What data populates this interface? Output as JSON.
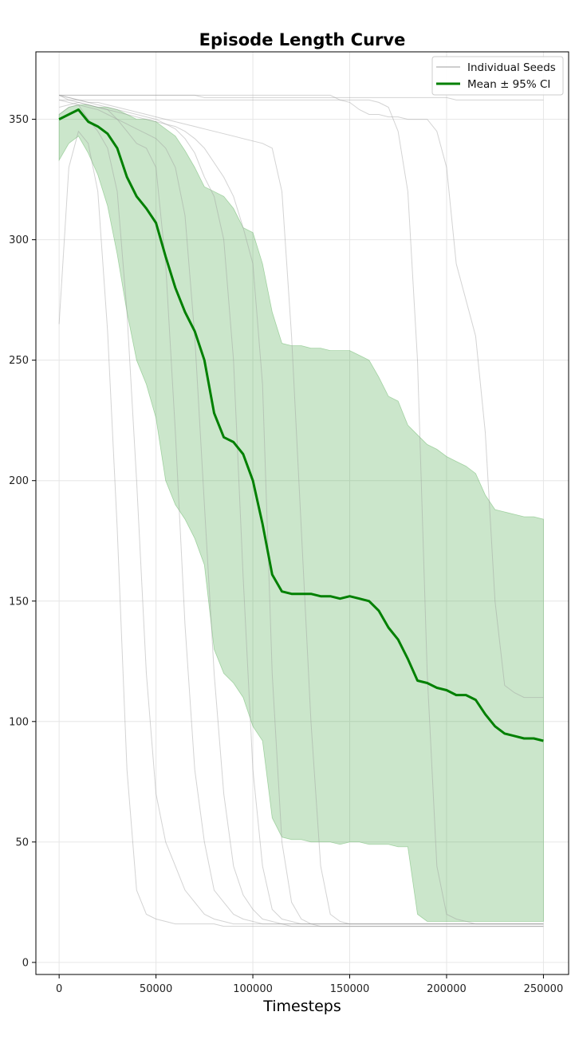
{
  "chart_data": {
    "type": "line",
    "title": "Episode Length Curve",
    "xlabel": "Timesteps",
    "ylabel": "",
    "xlim": [
      -12000,
      263000
    ],
    "ylim": [
      -5,
      378
    ],
    "xticks": [
      0,
      50000,
      100000,
      150000,
      200000,
      250000
    ],
    "yticks": [
      0,
      50,
      100,
      150,
      200,
      250,
      300,
      350
    ],
    "grid": true,
    "legend_position": "top-right",
    "legend": [
      {
        "label": "Individual Seeds",
        "color": "#b0b0b0"
      },
      {
        "label": "Mean ± 95% CI",
        "color": "#008000"
      }
    ],
    "mean_color": "#008000",
    "band_color": "#2e9b2e",
    "seed_color": "#9e9e9e",
    "x": [
      0,
      5000,
      10000,
      15000,
      20000,
      25000,
      30000,
      35000,
      40000,
      45000,
      50000,
      55000,
      60000,
      65000,
      70000,
      75000,
      80000,
      85000,
      90000,
      95000,
      100000,
      105000,
      110000,
      115000,
      120000,
      125000,
      130000,
      135000,
      140000,
      145000,
      150000,
      155000,
      160000,
      165000,
      170000,
      175000,
      180000,
      185000,
      190000,
      195000,
      200000,
      205000,
      210000,
      215000,
      220000,
      225000,
      230000,
      235000,
      240000,
      245000,
      250000
    ],
    "series": [
      {
        "name": "Mean ± 95% CI",
        "role": "mean",
        "values": [
          350,
          352,
          354,
          349,
          347,
          344,
          338,
          326,
          318,
          313,
          307,
          293,
          280,
          270,
          262,
          250,
          228,
          218,
          216,
          211,
          200,
          182,
          161,
          154,
          153,
          153,
          153,
          152,
          152,
          151,
          152,
          151,
          150,
          146,
          139,
          134,
          126,
          117,
          116,
          114,
          113,
          111,
          111,
          109,
          103,
          98,
          95,
          94,
          93,
          93,
          92
        ],
        "ci_upper": [
          352,
          355,
          356,
          356,
          355,
          355,
          354,
          352,
          350,
          350,
          349,
          346,
          343,
          337,
          330,
          322,
          320,
          318,
          313,
          305,
          303,
          290,
          270,
          257,
          256,
          256,
          255,
          255,
          254,
          254,
          254,
          252,
          250,
          243,
          235,
          233,
          223,
          219,
          215,
          213,
          210,
          208,
          206,
          203,
          194,
          188,
          187,
          186,
          185,
          185,
          184
        ],
        "ci_lower": [
          333,
          340,
          343,
          336,
          327,
          314,
          294,
          270,
          250,
          240,
          226,
          200,
          190,
          184,
          176,
          165,
          130,
          120,
          116,
          110,
          98,
          92,
          60,
          52,
          51,
          51,
          50,
          50,
          50,
          49,
          50,
          50,
          49,
          49,
          49,
          48,
          48,
          20,
          17,
          17,
          17,
          17,
          17,
          17,
          17,
          17,
          17,
          17,
          17,
          17,
          17
        ]
      },
      {
        "name": "",
        "role": "seed",
        "values": [
          265,
          330,
          345,
          340,
          320,
          262,
          180,
          80,
          30,
          20,
          18,
          17,
          16,
          16,
          16,
          16,
          16,
          15,
          15,
          15,
          15,
          15,
          15,
          15,
          15,
          15,
          15,
          15,
          15,
          15,
          15,
          15,
          15,
          15,
          15,
          15,
          15,
          15,
          15,
          15,
          15,
          15,
          15,
          15,
          15,
          15,
          15,
          15,
          15,
          15,
          15
        ]
      },
      {
        "name": "",
        "role": "seed",
        "values": [
          352,
          355,
          356,
          350,
          345,
          338,
          320,
          270,
          200,
          120,
          70,
          50,
          40,
          30,
          25,
          20,
          18,
          17,
          16,
          16,
          16,
          16,
          16,
          16,
          16,
          16,
          16,
          16,
          16,
          16,
          16,
          16,
          16,
          16,
          16,
          16,
          16,
          16,
          16,
          16,
          16,
          16,
          16,
          16,
          16,
          16,
          16,
          16,
          16,
          16,
          16
        ]
      },
      {
        "name": "",
        "role": "seed",
        "values": [
          355,
          356,
          357,
          356,
          355,
          354,
          350,
          345,
          340,
          338,
          330,
          290,
          220,
          140,
          80,
          50,
          30,
          25,
          20,
          18,
          17,
          16,
          16,
          16,
          15,
          15,
          15,
          15,
          15,
          15,
          15,
          15,
          15,
          15,
          15,
          15,
          15,
          15,
          15,
          15,
          15,
          15,
          15,
          15,
          15,
          15,
          15,
          15,
          15,
          15,
          15
        ]
      },
      {
        "name": "",
        "role": "seed",
        "values": [
          358,
          357,
          356,
          355,
          354,
          352,
          350,
          348,
          346,
          344,
          342,
          338,
          330,
          310,
          260,
          190,
          120,
          70,
          40,
          28,
          22,
          18,
          17,
          16,
          16,
          16,
          16,
          16,
          16,
          16,
          16,
          16,
          16,
          16,
          16,
          16,
          16,
          16,
          16,
          16,
          16,
          16,
          16,
          16,
          16,
          16,
          16,
          16,
          16,
          16,
          16
        ]
      },
      {
        "name": "",
        "role": "seed",
        "values": [
          360,
          359,
          358,
          357,
          356,
          355,
          354,
          353,
          352,
          351,
          350,
          348,
          346,
          342,
          336,
          326,
          318,
          300,
          250,
          160,
          80,
          40,
          22,
          18,
          17,
          16,
          16,
          15,
          15,
          15,
          15,
          15,
          15,
          15,
          15,
          15,
          15,
          15,
          15,
          15,
          15,
          15,
          15,
          15,
          15,
          15,
          15,
          15,
          15,
          15,
          15
        ]
      },
      {
        "name": "",
        "role": "seed",
        "values": [
          360,
          358,
          357,
          356,
          355,
          354,
          353,
          352,
          351,
          350,
          349,
          348,
          347,
          345,
          342,
          338,
          332,
          326,
          318,
          305,
          290,
          240,
          120,
          50,
          25,
          18,
          16,
          16,
          16,
          16,
          16,
          16,
          16,
          16,
          16,
          16,
          16,
          16,
          16,
          16,
          16,
          16,
          16,
          16,
          16,
          16,
          16,
          16,
          16,
          16,
          16
        ]
      },
      {
        "name": "",
        "role": "seed",
        "values": [
          360,
          359,
          358,
          357,
          357,
          356,
          355,
          354,
          353,
          352,
          351,
          350,
          349,
          348,
          347,
          346,
          345,
          344,
          343,
          342,
          341,
          340,
          338,
          320,
          260,
          180,
          100,
          40,
          20,
          17,
          16,
          16,
          16,
          16,
          16,
          16,
          16,
          16,
          16,
          16,
          16,
          16,
          16,
          16,
          16,
          16,
          16,
          16,
          16,
          16,
          16
        ]
      },
      {
        "name": "",
        "role": "seed",
        "values": [
          360,
          360,
          360,
          360,
          360,
          360,
          360,
          360,
          360,
          360,
          360,
          360,
          360,
          360,
          360,
          360,
          360,
          360,
          360,
          360,
          360,
          360,
          360,
          360,
          360,
          360,
          360,
          360,
          360,
          358,
          358,
          358,
          358,
          357,
          355,
          345,
          320,
          250,
          120,
          40,
          20,
          18,
          17,
          16,
          16,
          16,
          16,
          16,
          16,
          16,
          16
        ]
      },
      {
        "name": "",
        "role": "seed",
        "values": [
          358,
          358,
          358,
          358,
          358,
          358,
          358,
          358,
          358,
          358,
          358,
          358,
          358,
          358,
          358,
          358,
          358,
          358,
          358,
          358,
          358,
          358,
          358,
          358,
          358,
          358,
          358,
          358,
          358,
          358,
          357,
          354,
          352,
          352,
          351,
          351,
          350,
          350,
          350,
          345,
          330,
          290,
          275,
          260,
          220,
          150,
          115,
          112,
          110,
          110,
          110
        ]
      },
      {
        "name": "",
        "role": "seed",
        "values": [
          360,
          360,
          360,
          360,
          360,
          360,
          360,
          360,
          360,
          360,
          360,
          360,
          360,
          360,
          360,
          359,
          359,
          359,
          359,
          359,
          359,
          359,
          359,
          359,
          359,
          359,
          359,
          359,
          359,
          359,
          359,
          359,
          359,
          359,
          359,
          359,
          359,
          359,
          359,
          359,
          359,
          358,
          358,
          358,
          358,
          358,
          358,
          358,
          358,
          358,
          358
        ]
      }
    ]
  }
}
